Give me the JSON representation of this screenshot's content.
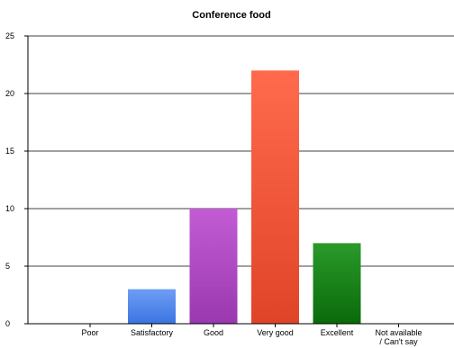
{
  "chart_data": {
    "type": "bar",
    "title": "Conference food",
    "xlabel": "",
    "ylabel": "",
    "categories": [
      "Poor",
      "Satisfactory",
      "Good",
      "Very good",
      "Excellent",
      "Not available / Can't say"
    ],
    "category_lines": [
      [
        "Poor"
      ],
      [
        "Satisfactory"
      ],
      [
        "Good"
      ],
      [
        "Very good"
      ],
      [
        "Excellent"
      ],
      [
        "Not available",
        "/ Can't say"
      ]
    ],
    "values": [
      0,
      3,
      10,
      22,
      7,
      0
    ],
    "bar_colors": [
      [
        "#8a8a8a",
        "#6a6a6a"
      ],
      [
        "#6e9ef5",
        "#3b74e0"
      ],
      [
        "#c35cd4",
        "#9a38b0"
      ],
      [
        "#ff6a4d",
        "#e04428"
      ],
      [
        "#2a9a2a",
        "#0a6a0a"
      ],
      [
        "#8a8a8a",
        "#6a6a6a"
      ]
    ],
    "ylim": [
      0,
      25
    ],
    "yticks": [
      0,
      5,
      10,
      15,
      20,
      25
    ],
    "grid": true,
    "legend": "none"
  }
}
